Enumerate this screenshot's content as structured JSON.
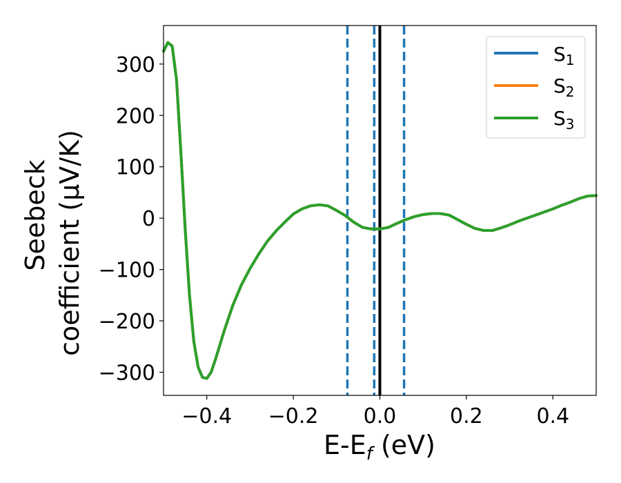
{
  "chart_data": {
    "type": "line",
    "xlabel": {
      "main": "E-E",
      "sub": "f",
      "unit": " (eV)"
    },
    "ylabel": {
      "line1": "Seebeck",
      "line2": "coefficient  (μV/K)"
    },
    "xlim": [
      -0.5,
      0.5
    ],
    "ylim": [
      -345,
      375
    ],
    "xticks": [
      -0.4,
      -0.2,
      0.0,
      0.2,
      0.4
    ],
    "xtick_labels": [
      "−0.4",
      "−0.2",
      "0.0",
      "0.2",
      "0.4"
    ],
    "yticks": [
      300,
      200,
      100,
      0,
      -100,
      -200,
      -300
    ],
    "ytick_labels": [
      "300",
      "200",
      "100",
      "0",
      "−100",
      "−200",
      "−300"
    ],
    "grid": false,
    "legend": {
      "position": "top-right",
      "entries": [
        {
          "main": "S",
          "sub": "1",
          "color": "#1f77b4"
        },
        {
          "main": "S",
          "sub": "2",
          "color": "#ff7f0e"
        },
        {
          "main": "S",
          "sub": "3",
          "color": "#2ca02c"
        }
      ]
    },
    "vlines": [
      {
        "x": -0.075,
        "style": "dashed",
        "color": "#1f77b4"
      },
      {
        "x": -0.013,
        "style": "dashed",
        "color": "#1f77b4"
      },
      {
        "x": 0.0,
        "style": "solid",
        "color": "#000000"
      },
      {
        "x": 0.056,
        "style": "dashed",
        "color": "#1f77b4"
      }
    ],
    "series": [
      {
        "name": "S1",
        "color": "#1f77b4",
        "x": [
          -0.5,
          -0.49,
          -0.48,
          -0.47,
          -0.46,
          -0.45,
          -0.44,
          -0.43,
          -0.42,
          -0.41,
          -0.4,
          -0.39,
          -0.38,
          -0.36,
          -0.34,
          -0.32,
          -0.3,
          -0.28,
          -0.26,
          -0.24,
          -0.22,
          -0.2,
          -0.18,
          -0.16,
          -0.14,
          -0.12,
          -0.1,
          -0.08,
          -0.06,
          -0.04,
          -0.02,
          0.0,
          0.02,
          0.04,
          0.06,
          0.08,
          0.1,
          0.12,
          0.14,
          0.16,
          0.18,
          0.2,
          0.22,
          0.24,
          0.26,
          0.28,
          0.3,
          0.32,
          0.34,
          0.36,
          0.38,
          0.4,
          0.42,
          0.44,
          0.46,
          0.48,
          0.5
        ],
        "y": [
          325,
          342,
          335,
          270,
          130,
          -20,
          -150,
          -240,
          -290,
          -310,
          -312,
          -300,
          -275,
          -220,
          -170,
          -130,
          -98,
          -70,
          -45,
          -25,
          -8,
          8,
          18,
          24,
          26,
          24,
          15,
          5,
          -8,
          -18,
          -21,
          -21,
          -18,
          -10,
          -3,
          3,
          7,
          9,
          9,
          6,
          -3,
          -12,
          -20,
          -24,
          -24,
          -19,
          -13,
          -6,
          0,
          6,
          12,
          18,
          25,
          31,
          38,
          43,
          44
        ]
      },
      {
        "name": "S2",
        "color": "#ff7f0e",
        "x": [
          -0.5,
          -0.49,
          -0.48,
          -0.47,
          -0.46,
          -0.45,
          -0.44,
          -0.43,
          -0.42,
          -0.41,
          -0.4,
          -0.39,
          -0.38,
          -0.36,
          -0.34,
          -0.32,
          -0.3,
          -0.28,
          -0.26,
          -0.24,
          -0.22,
          -0.2,
          -0.18,
          -0.16,
          -0.14,
          -0.12,
          -0.1,
          -0.08,
          -0.06,
          -0.04,
          -0.02,
          0.0,
          0.02,
          0.04,
          0.06,
          0.08,
          0.1,
          0.12,
          0.14,
          0.16,
          0.18,
          0.2,
          0.22,
          0.24,
          0.26,
          0.28,
          0.3,
          0.32,
          0.34,
          0.36,
          0.38,
          0.4,
          0.42,
          0.44,
          0.46,
          0.48,
          0.5
        ],
        "y": [
          325,
          342,
          335,
          270,
          130,
          -20,
          -150,
          -240,
          -290,
          -310,
          -312,
          -300,
          -275,
          -220,
          -170,
          -130,
          -98,
          -70,
          -45,
          -25,
          -8,
          8,
          18,
          24,
          26,
          24,
          15,
          5,
          -8,
          -18,
          -21,
          -21,
          -18,
          -10,
          -3,
          3,
          7,
          9,
          9,
          6,
          -3,
          -12,
          -20,
          -24,
          -24,
          -19,
          -13,
          -6,
          0,
          6,
          12,
          18,
          25,
          31,
          38,
          43,
          44
        ]
      },
      {
        "name": "S3",
        "color": "#2ca02c",
        "x": [
          -0.5,
          -0.49,
          -0.48,
          -0.47,
          -0.46,
          -0.45,
          -0.44,
          -0.43,
          -0.42,
          -0.41,
          -0.4,
          -0.39,
          -0.38,
          -0.36,
          -0.34,
          -0.32,
          -0.3,
          -0.28,
          -0.26,
          -0.24,
          -0.22,
          -0.2,
          -0.18,
          -0.16,
          -0.14,
          -0.12,
          -0.1,
          -0.08,
          -0.06,
          -0.04,
          -0.02,
          0.0,
          0.02,
          0.04,
          0.06,
          0.08,
          0.1,
          0.12,
          0.14,
          0.16,
          0.18,
          0.2,
          0.22,
          0.24,
          0.26,
          0.28,
          0.3,
          0.32,
          0.34,
          0.36,
          0.38,
          0.4,
          0.42,
          0.44,
          0.46,
          0.48,
          0.5
        ],
        "y": [
          325,
          342,
          335,
          270,
          130,
          -20,
          -150,
          -240,
          -290,
          -310,
          -312,
          -300,
          -275,
          -220,
          -170,
          -130,
          -98,
          -70,
          -45,
          -25,
          -8,
          8,
          18,
          24,
          26,
          24,
          15,
          5,
          -8,
          -18,
          -21,
          -21,
          -18,
          -10,
          -3,
          3,
          7,
          9,
          9,
          6,
          -3,
          -12,
          -20,
          -24,
          -24,
          -19,
          -13,
          -6,
          0,
          6,
          12,
          18,
          25,
          31,
          38,
          43,
          44
        ]
      }
    ]
  }
}
